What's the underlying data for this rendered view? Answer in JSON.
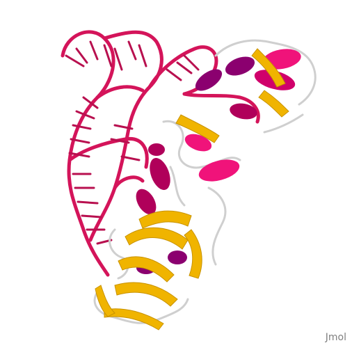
{
  "viewer": {
    "watermark": "Jmol",
    "colors": {
      "rna": "#d4145a",
      "helix_hot": "#f0137a",
      "helix_purple": "#8b006f",
      "helix_dark": "#b0005a",
      "strand": "#f0b400",
      "coil": "#d0d0d0",
      "background": "#ffffff"
    }
  }
}
